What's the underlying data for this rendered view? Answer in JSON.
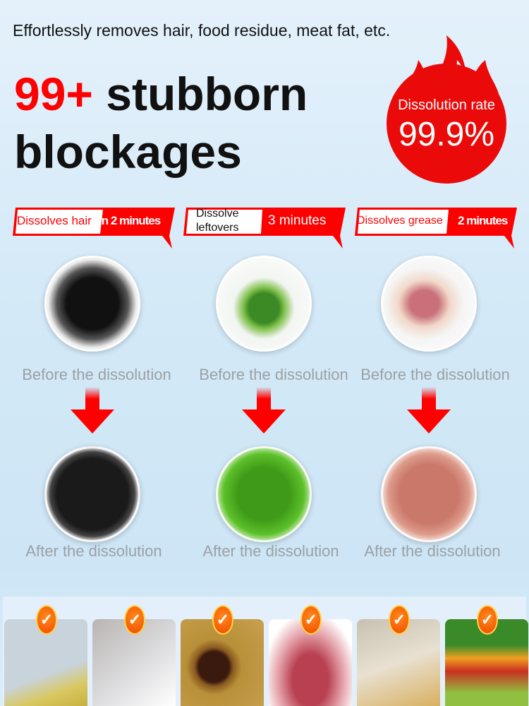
{
  "tagline": "Effortlessly removes hair, food residue, meat fat, etc.",
  "headline": {
    "highlight": "99+",
    "rest": " stubborn",
    "line2": "blockages"
  },
  "badge": {
    "label": "Dissolution rate",
    "value": "99.9%",
    "color": "#ea0a0a"
  },
  "columns": [
    {
      "banner_left": "Dissolves hair",
      "banner_right": "in 2 minutes",
      "before": "Before the dissolution",
      "after": "After the dissolution",
      "before_image": "hair-clump",
      "after_image": "black-liquid"
    },
    {
      "banner_left": "Dissolve leftovers",
      "banner_right": "3 minutes",
      "before": "Before the dissolution",
      "after": "After the dissolution",
      "before_image": "parsley-leaves",
      "after_image": "green-liquid"
    },
    {
      "banner_left": "Dissolves grease",
      "banner_right": "2 minutes",
      "before": "Before the dissolution",
      "after": "After the dissolution",
      "before_image": "meat-fat",
      "after_image": "pink-liquid"
    }
  ],
  "gallery": [
    "oil-droplets",
    "hair-in-drain",
    "clogged-sink",
    "raw-meat",
    "food-scraps",
    "fruits-vegetables"
  ],
  "colors": {
    "accent": "#ff0000",
    "caption": "#9aa1a6"
  }
}
